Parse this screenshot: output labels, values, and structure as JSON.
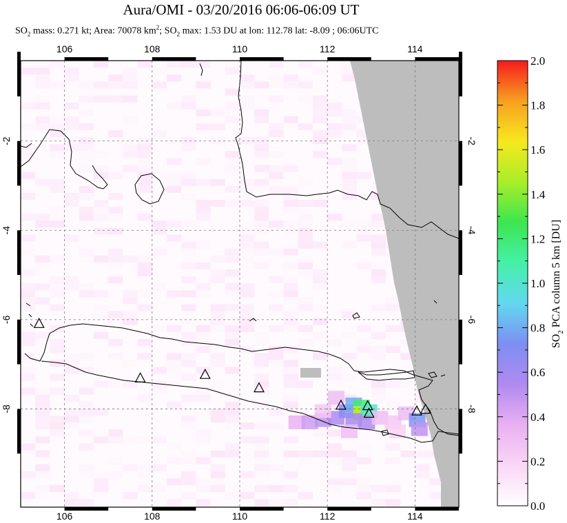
{
  "title": "Aura/OMI - 03/20/2016 06:06-06:09 UT",
  "subtitle": {
    "so2_prefix": "SO",
    "so2_sub": "2",
    "mass_text": " mass: 0.271 kt; Area: 70078 km",
    "area_sup": "2",
    "max_text": "; SO",
    "max_sub": "2",
    "rest_text": " max: 1.53 DU at lon: 112.78 lat: -8.09 ; 06:06UTC"
  },
  "chart_data": {
    "type": "heatmap",
    "x_ticks": [
      {
        "value": 106,
        "label": "106"
      },
      {
        "value": 108,
        "label": "108"
      },
      {
        "value": 110,
        "label": "110"
      },
      {
        "value": 112,
        "label": "112"
      },
      {
        "value": 114,
        "label": "114"
      }
    ],
    "y_ticks": [
      {
        "value": -2,
        "label": "-2"
      },
      {
        "value": -4,
        "label": "-4"
      },
      {
        "value": -6,
        "label": "-6"
      },
      {
        "value": -8,
        "label": "-8"
      }
    ],
    "xlim": [
      105,
      115
    ],
    "ylim": [
      -10.2,
      -0.2
    ],
    "grid": true,
    "colorbar": {
      "label": "SO2 PCA column 5 km [DU]",
      "label_prefix": "SO",
      "label_sub": "2",
      "label_rest": " PCA column 5 km [DU]",
      "range": [
        0,
        2
      ],
      "ticks": [
        "0.0",
        "0.2",
        "0.4",
        "0.6",
        "0.8",
        "1.0",
        "1.2",
        "1.4",
        "1.6",
        "1.8",
        "2.0"
      ],
      "stops": [
        "#ffffff",
        "#fbd6f6",
        "#e9b0f2",
        "#b08af0",
        "#7d8ef2",
        "#62d8f0",
        "#46f0a8",
        "#3ce650",
        "#a8ee28",
        "#f7e81e",
        "#f7a020",
        "#f51c1c"
      ]
    },
    "volcanoes": [
      {
        "lon": 105.42,
        "lat": -6.1
      },
      {
        "lon": 107.73,
        "lat": -7.32
      },
      {
        "lon": 109.21,
        "lat": -7.24
      },
      {
        "lon": 110.44,
        "lat": -7.54
      },
      {
        "lon": 112.31,
        "lat": -7.93
      },
      {
        "lon": 112.92,
        "lat": -7.94
      },
      {
        "lon": 112.95,
        "lat": -8.11
      },
      {
        "lon": 114.04,
        "lat": -8.06
      },
      {
        "lon": 114.24,
        "lat": -8.02
      }
    ],
    "so2_max": {
      "value": 1.53,
      "lon": 112.78,
      "lat": -8.09
    },
    "no_data_color": "#bdbdbd"
  }
}
